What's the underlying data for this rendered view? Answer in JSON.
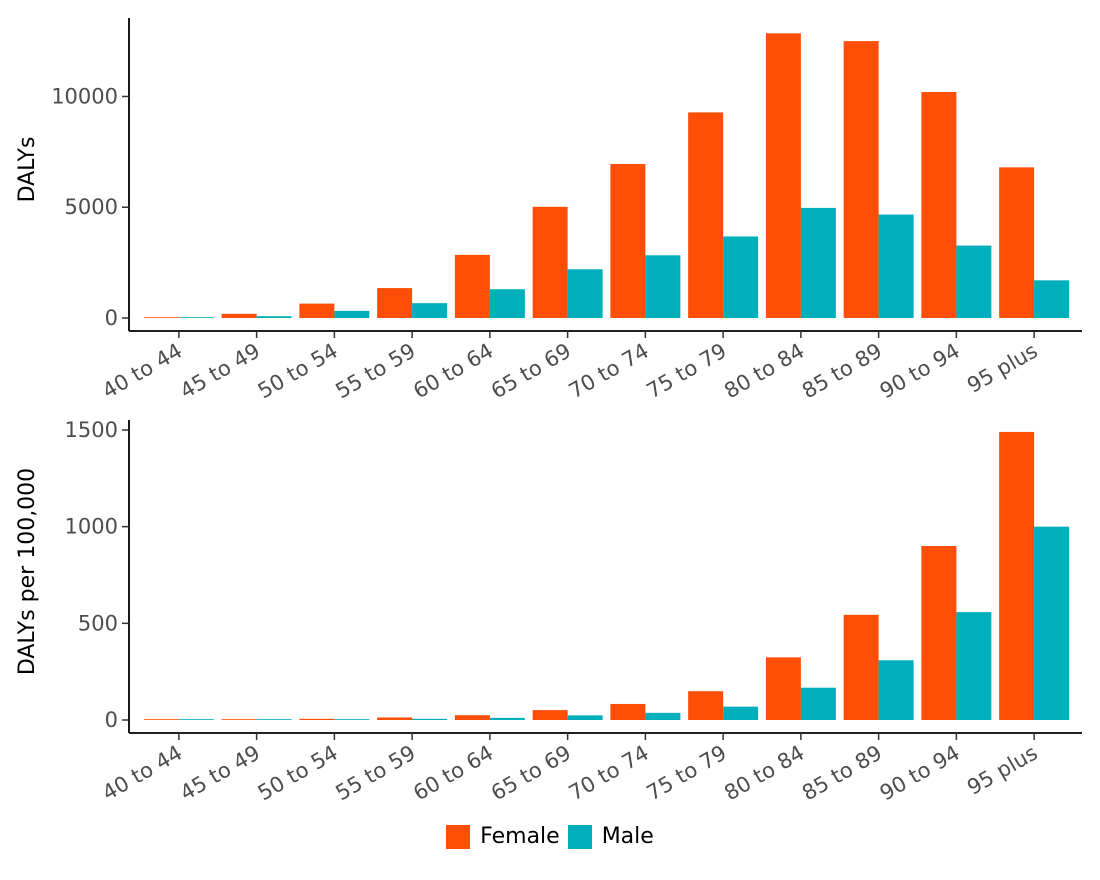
{
  "colors": {
    "Female": "#fc4e07",
    "Male": "#00afbb"
  },
  "legend": {
    "items": [
      "Female",
      "Male"
    ]
  },
  "chart_data": [
    {
      "type": "bar",
      "title": "",
      "xlabel": "",
      "ylabel": "DALYs",
      "ylim": [
        0,
        13000
      ],
      "yticks": [
        0,
        5000,
        10000
      ],
      "categories": [
        "40 to 44",
        "45 to 49",
        "50 to 54",
        "55 to 59",
        "60 to 64",
        "65 to 69",
        "70 to 74",
        "75 to 79",
        "80 to 84",
        "85 to 89",
        "90 to 94",
        "95 plus"
      ],
      "series": [
        {
          "name": "Female",
          "values": [
            20,
            190,
            650,
            1350,
            2850,
            5020,
            6950,
            9280,
            12850,
            12500,
            10200,
            6800
          ]
        },
        {
          "name": "Male",
          "values": [
            5,
            80,
            320,
            670,
            1300,
            2200,
            2830,
            3680,
            4970,
            4670,
            3270,
            1700
          ]
        }
      ]
    },
    {
      "type": "bar",
      "title": "",
      "xlabel": "",
      "ylabel": "DALYs per 100,000",
      "ylim": [
        0,
        1500
      ],
      "yticks": [
        0,
        500,
        1000,
        1500
      ],
      "categories": [
        "40 to 44",
        "45 to 49",
        "50 to 54",
        "55 to 59",
        "60 to 64",
        "65 to 69",
        "70 to 74",
        "75 to 79",
        "80 to 84",
        "85 to 89",
        "90 to 94",
        "95 plus"
      ],
      "series": [
        {
          "name": "Female",
          "values": [
            1,
            3,
            6,
            13,
            25,
            51,
            83,
            149,
            324,
            544,
            900,
            1490
          ]
        },
        {
          "name": "Male",
          "values": [
            0.5,
            1.5,
            3,
            6,
            11,
            24,
            37,
            69,
            167,
            309,
            558,
            1000
          ]
        }
      ]
    }
  ]
}
